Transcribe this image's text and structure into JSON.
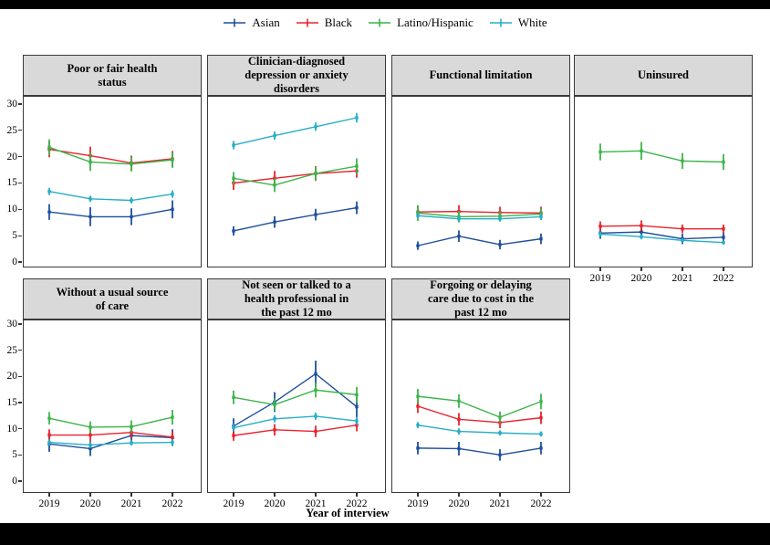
{
  "legend": {
    "items": [
      {
        "label": "Asian",
        "color": "#1d4f9c"
      },
      {
        "label": "Black",
        "color": "#e8232d"
      },
      {
        "label": "Latino/Hispanic",
        "color": "#3cb44a"
      },
      {
        "label": "White",
        "color": "#27aec6"
      }
    ]
  },
  "chart_data": {
    "type": "line",
    "x": [
      "2019",
      "2020",
      "2021",
      "2022"
    ],
    "xlabel": "Year of interview",
    "ylim": [
      0,
      30
    ],
    "y_ticks": [
      0,
      5,
      10,
      15,
      20,
      25,
      30
    ],
    "legend_position": "top",
    "grid": false,
    "error_bars": true,
    "series_colors": {
      "Asian": "#1d4f9c",
      "Black": "#e8232d",
      "Latino/Hispanic": "#3cb44a",
      "White": "#27aec6"
    },
    "panels": [
      {
        "title": "Poor or fair health\nstatus",
        "series": [
          {
            "name": "Asian",
            "values": [
              9.5,
              8.6,
              8.6,
              10.0
            ],
            "err": [
              1.5,
              1.8,
              1.6,
              1.7
            ]
          },
          {
            "name": "Black",
            "values": [
              21.4,
              20.2,
              18.8,
              19.6
            ],
            "err": [
              1.5,
              1.7,
              1.4,
              1.5
            ]
          },
          {
            "name": "Latino/Hispanic",
            "values": [
              21.8,
              19.0,
              18.6,
              19.4
            ],
            "err": [
              1.5,
              1.7,
              1.4,
              1.5
            ]
          },
          {
            "name": "White",
            "values": [
              13.4,
              12.0,
              11.7,
              12.9
            ],
            "err": [
              0.7,
              0.6,
              0.6,
              0.7
            ]
          }
        ]
      },
      {
        "title": "Clinician-diagnosed\ndepression or anxiety\ndisorders",
        "series": [
          {
            "name": "Asian",
            "values": [
              5.9,
              7.6,
              9.0,
              10.3
            ],
            "err": [
              0.9,
              1.1,
              1.1,
              1.2
            ]
          },
          {
            "name": "Black",
            "values": [
              15.0,
              15.9,
              16.8,
              17.3
            ],
            "err": [
              1.3,
              1.4,
              1.4,
              1.3
            ]
          },
          {
            "name": "Latino/Hispanic",
            "values": [
              15.9,
              14.6,
              16.8,
              18.2
            ],
            "err": [
              1.2,
              1.3,
              1.3,
              1.5
            ]
          },
          {
            "name": "White",
            "values": [
              22.2,
              24.0,
              25.7,
              27.4
            ],
            "err": [
              0.8,
              0.8,
              0.8,
              0.9
            ]
          }
        ]
      },
      {
        "title": "Functional limitation",
        "series": [
          {
            "name": "Asian",
            "values": [
              3.1,
              4.9,
              3.3,
              4.4
            ],
            "err": [
              0.8,
              1.1,
              0.9,
              1.0
            ]
          },
          {
            "name": "Black",
            "values": [
              9.5,
              9.6,
              9.4,
              9.3
            ],
            "err": [
              1.1,
              1.2,
              1.1,
              1.2
            ]
          },
          {
            "name": "Latino/Hispanic",
            "values": [
              9.3,
              8.6,
              8.7,
              9.1
            ],
            "err": [
              1.5,
              1.1,
              1.0,
              1.1
            ]
          },
          {
            "name": "White",
            "values": [
              8.8,
              8.2,
              8.2,
              8.6
            ],
            "err": [
              0.5,
              0.5,
              0.5,
              0.6
            ]
          }
        ]
      },
      {
        "title": "Uninsured",
        "series": [
          {
            "name": "Asian",
            "values": [
              5.5,
              5.7,
              4.4,
              4.7
            ],
            "err": [
              1.1,
              1.2,
              1.0,
              0.9
            ]
          },
          {
            "name": "Black",
            "values": [
              6.8,
              6.9,
              6.3,
              6.3
            ],
            "err": [
              0.9,
              1.0,
              0.8,
              0.8
            ]
          },
          {
            "name": "Latino/Hispanic",
            "values": [
              20.9,
              21.1,
              19.2,
              19.0
            ],
            "err": [
              1.6,
              1.7,
              1.5,
              1.5
            ]
          },
          {
            "name": "White",
            "values": [
              5.3,
              4.8,
              4.1,
              3.7
            ],
            "err": [
              0.5,
              0.5,
              0.4,
              0.4
            ]
          }
        ]
      },
      {
        "title": "Without a usual source\nof care",
        "series": [
          {
            "name": "Asian",
            "values": [
              7.1,
              6.2,
              8.7,
              8.3
            ],
            "err": [
              1.5,
              1.4,
              1.7,
              1.6
            ]
          },
          {
            "name": "Black",
            "values": [
              8.8,
              8.8,
              9.3,
              8.4
            ],
            "err": [
              1.1,
              1.2,
              1.1,
              1.1
            ]
          },
          {
            "name": "Latino/Hispanic",
            "values": [
              12.0,
              10.3,
              10.4,
              12.2
            ],
            "err": [
              1.2,
              1.1,
              1.2,
              1.4
            ]
          },
          {
            "name": "White",
            "values": [
              7.4,
              6.9,
              7.3,
              7.4
            ],
            "err": [
              0.6,
              0.6,
              0.5,
              0.6
            ]
          }
        ]
      },
      {
        "title": "Not seen or talked to a\nhealth professional in\nthe past 12 mo",
        "series": [
          {
            "name": "Asian",
            "values": [
              10.5,
              15.1,
              20.5,
              14.2
            ],
            "err": [
              1.5,
              1.9,
              2.5,
              2.2
            ]
          },
          {
            "name": "Black",
            "values": [
              8.7,
              9.8,
              9.5,
              10.7
            ],
            "err": [
              1.0,
              1.1,
              1.1,
              1.2
            ]
          },
          {
            "name": "Latino/Hispanic",
            "values": [
              16.0,
              14.6,
              17.4,
              16.5
            ],
            "err": [
              1.3,
              1.2,
              1.4,
              1.5
            ]
          },
          {
            "name": "White",
            "values": [
              10.2,
              11.9,
              12.4,
              11.5
            ],
            "err": [
              0.7,
              0.7,
              0.7,
              0.8
            ]
          }
        ]
      },
      {
        "title": "Forgoing or delaying\ncare due to cost in the\npast 12 mo",
        "series": [
          {
            "name": "Asian",
            "values": [
              6.3,
              6.2,
              5.0,
              6.3
            ],
            "err": [
              1.2,
              1.3,
              1.1,
              1.2
            ]
          },
          {
            "name": "Black",
            "values": [
              14.3,
              11.8,
              11.2,
              12.1
            ],
            "err": [
              1.3,
              1.2,
              1.1,
              1.2
            ]
          },
          {
            "name": "Latino/Hispanic",
            "values": [
              16.2,
              15.3,
              12.2,
              15.2
            ],
            "err": [
              1.4,
              1.3,
              1.1,
              1.5
            ]
          },
          {
            "name": "White",
            "values": [
              10.7,
              9.5,
              9.2,
              9.0
            ],
            "err": [
              0.6,
              0.6,
              0.5,
              0.5
            ]
          }
        ]
      }
    ]
  }
}
